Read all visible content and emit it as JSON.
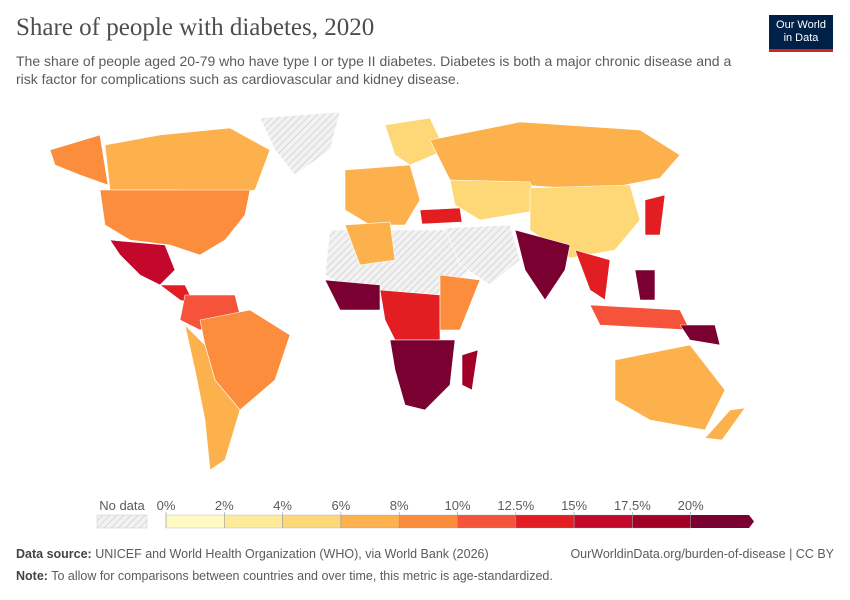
{
  "header": {
    "title": "Share of people with diabetes, 2020",
    "subtitle": "The share of people aged 20-79 who have type I or type II diabetes. Diabetes is both a major chronic disease and a risk factor for complications such as cardiovascular and kidney disease.",
    "logo_line1": "Our World",
    "logo_line2": "in Data"
  },
  "chart_data": {
    "type": "choropleth",
    "year": 2020,
    "legend": {
      "no_data_label": "No data",
      "tick_labels": [
        "0%",
        "2%",
        "4%",
        "6%",
        "8%",
        "10%",
        "12.5%",
        "15%",
        "17.5%",
        "20%"
      ],
      "bins": [
        0,
        2,
        4,
        6,
        8,
        10,
        12.5,
        15,
        17.5,
        20,
        22.5
      ],
      "colors": [
        "#fff9c4",
        "#feeb9a",
        "#fed876",
        "#fdb14c",
        "#fb8d3d",
        "#f5533a",
        "#e31e22",
        "#c3082c",
        "#a30027",
        "#7a0031"
      ],
      "no_data_color": "#e8e8e8",
      "placement": "bottom"
    },
    "regions": [
      {
        "id": "canada",
        "value": 7
      },
      {
        "id": "alaska",
        "value": 9
      },
      {
        "id": "usa",
        "value": 9
      },
      {
        "id": "mexico",
        "value": 15
      },
      {
        "id": "central-america",
        "value": 14
      },
      {
        "id": "greenland",
        "value": null
      },
      {
        "id": "colombia-venezuela",
        "value": 12
      },
      {
        "id": "brazil",
        "value": 9
      },
      {
        "id": "andes-argentina",
        "value": 6
      },
      {
        "id": "europe",
        "value": 6
      },
      {
        "id": "scandinavia",
        "value": 5
      },
      {
        "id": "russia",
        "value": 7
      },
      {
        "id": "central-asia",
        "value": 5
      },
      {
        "id": "china",
        "value": 5
      },
      {
        "id": "sahara",
        "value": null
      },
      {
        "id": "algeria",
        "value": 7
      },
      {
        "id": "turkey",
        "value": 14
      },
      {
        "id": "middle-east",
        "value": null
      },
      {
        "id": "india",
        "value": 22
      },
      {
        "id": "southeast-asia",
        "value": 14
      },
      {
        "id": "indonesia",
        "value": 10
      },
      {
        "id": "philippines",
        "value": 20
      },
      {
        "id": "papua-new-guinea",
        "value": 21
      },
      {
        "id": "australia",
        "value": 6
      },
      {
        "id": "new-zealand",
        "value": 7
      },
      {
        "id": "west-africa",
        "value": 20
      },
      {
        "id": "central-africa",
        "value": 14
      },
      {
        "id": "east-africa",
        "value": 8
      },
      {
        "id": "southern-africa",
        "value": 21
      },
      {
        "id": "madagascar",
        "value": 19
      },
      {
        "id": "japan",
        "value": 13
      }
    ]
  },
  "footer": {
    "source_label": "Data source:",
    "source_text": "UNICEF and World Health Organization (WHO), via World Bank (2026)",
    "url": "OurWorldinData.org/burden-of-disease | CC BY",
    "note_label": "Note:",
    "note_text": "To allow for comparisons between countries and over time, this metric is age-standardized."
  }
}
